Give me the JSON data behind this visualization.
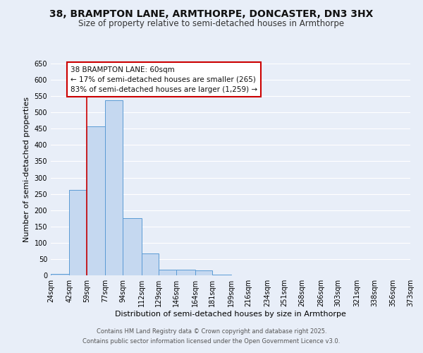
{
  "title": "38, BRAMPTON LANE, ARMTHORPE, DONCASTER, DN3 3HX",
  "subtitle": "Size of property relative to semi-detached houses in Armthorpe",
  "xlabel": "Distribution of semi-detached houses by size in Armthorpe",
  "ylabel": "Number of semi-detached properties",
  "bar_heights": [
    5,
    262,
    457,
    537,
    175,
    67,
    18,
    18,
    15,
    2,
    0,
    0,
    0,
    0,
    0,
    0,
    0,
    0,
    0,
    0
  ],
  "bin_edges": [
    24,
    42,
    59,
    77,
    94,
    112,
    129,
    146,
    164,
    181,
    199,
    216,
    234,
    251,
    268,
    286,
    303,
    321,
    338,
    356,
    373
  ],
  "tick_labels": [
    "24sqm",
    "42sqm",
    "59sqm",
    "77sqm",
    "94sqm",
    "112sqm",
    "129sqm",
    "146sqm",
    "164sqm",
    "181sqm",
    "199sqm",
    "216sqm",
    "234sqm",
    "251sqm",
    "268sqm",
    "286sqm",
    "303sqm",
    "321sqm",
    "338sqm",
    "356sqm",
    "373sqm"
  ],
  "bar_color": "#c5d8f0",
  "bar_edge_color": "#5b9bd5",
  "vline_x": 59,
  "vline_color": "#cc0000",
  "ylim": [
    0,
    650
  ],
  "yticks": [
    0,
    50,
    100,
    150,
    200,
    250,
    300,
    350,
    400,
    450,
    500,
    550,
    600,
    650
  ],
  "annotation_title": "38 BRAMPTON LANE: 60sqm",
  "annotation_line1": "← 17% of semi-detached houses are smaller (265)",
  "annotation_line2": "83% of semi-detached houses are larger (1,259) →",
  "annotation_box_color": "#ffffff",
  "annotation_box_edge_color": "#cc0000",
  "bg_color": "#e8eef8",
  "plot_bg_color": "#e8eef8",
  "grid_color": "#ffffff",
  "footer_line1": "Contains HM Land Registry data © Crown copyright and database right 2025.",
  "footer_line2": "Contains public sector information licensed under the Open Government Licence v3.0.",
  "title_fontsize": 10,
  "subtitle_fontsize": 8.5,
  "axis_label_fontsize": 8,
  "tick_fontsize": 7,
  "annotation_fontsize": 7.5,
  "footer_fontsize": 6
}
